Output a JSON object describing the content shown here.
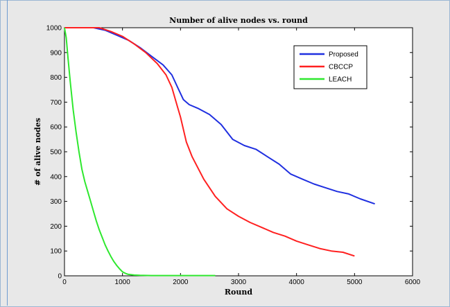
{
  "chart_data": {
    "type": "line",
    "title": "Number of alive nodes vs. round",
    "xlabel": "Round",
    "ylabel": "# of alive nodes",
    "xlim": [
      0,
      6000
    ],
    "ylim": [
      0,
      1000
    ],
    "xticks": [
      0,
      1000,
      2000,
      3000,
      4000,
      5000,
      6000
    ],
    "yticks": [
      0,
      100,
      200,
      300,
      400,
      500,
      600,
      700,
      800,
      900,
      1000
    ],
    "grid": false,
    "legend_position": "top-right",
    "series": [
      {
        "name": "Proposed",
        "color": "#1f2fe0",
        "x": [
          0,
          500,
          700,
          900,
          1100,
          1300,
          1500,
          1700,
          1850,
          1950,
          2050,
          2150,
          2300,
          2500,
          2700,
          2900,
          3100,
          3300,
          3500,
          3700,
          3900,
          4100,
          4300,
          4500,
          4700,
          4900,
          5100,
          5350
        ],
        "y": [
          1000,
          1000,
          990,
          970,
          950,
          920,
          885,
          850,
          810,
          760,
          710,
          690,
          675,
          650,
          610,
          550,
          525,
          510,
          480,
          450,
          410,
          390,
          370,
          355,
          340,
          330,
          310,
          290
        ]
      },
      {
        "name": "CBCCP",
        "color": "#ff2020",
        "x": [
          0,
          600,
          800,
          1000,
          1200,
          1400,
          1600,
          1750,
          1850,
          1950,
          2000,
          2100,
          2200,
          2400,
          2600,
          2800,
          3000,
          3200,
          3400,
          3600,
          3800,
          4000,
          4200,
          4400,
          4600,
          4800,
          5000
        ],
        "y": [
          1000,
          1000,
          985,
          965,
          935,
          900,
          855,
          810,
          760,
          680,
          640,
          540,
          480,
          390,
          320,
          270,
          240,
          215,
          195,
          175,
          160,
          140,
          125,
          110,
          100,
          95,
          80
        ]
      },
      {
        "name": "LEACH",
        "color": "#2ee82e",
        "x": [
          0,
          30,
          60,
          100,
          150,
          200,
          250,
          300,
          350,
          400,
          450,
          500,
          550,
          600,
          650,
          700,
          750,
          800,
          850,
          900,
          950,
          1000,
          1050,
          1100,
          1200,
          1300,
          1500,
          2000,
          2600
        ],
        "y": [
          1000,
          960,
          880,
          780,
          670,
          580,
          500,
          430,
          380,
          340,
          300,
          260,
          220,
          185,
          155,
          125,
          100,
          78,
          58,
          42,
          28,
          16,
          10,
          6,
          3,
          2,
          1,
          1,
          1
        ]
      }
    ]
  }
}
